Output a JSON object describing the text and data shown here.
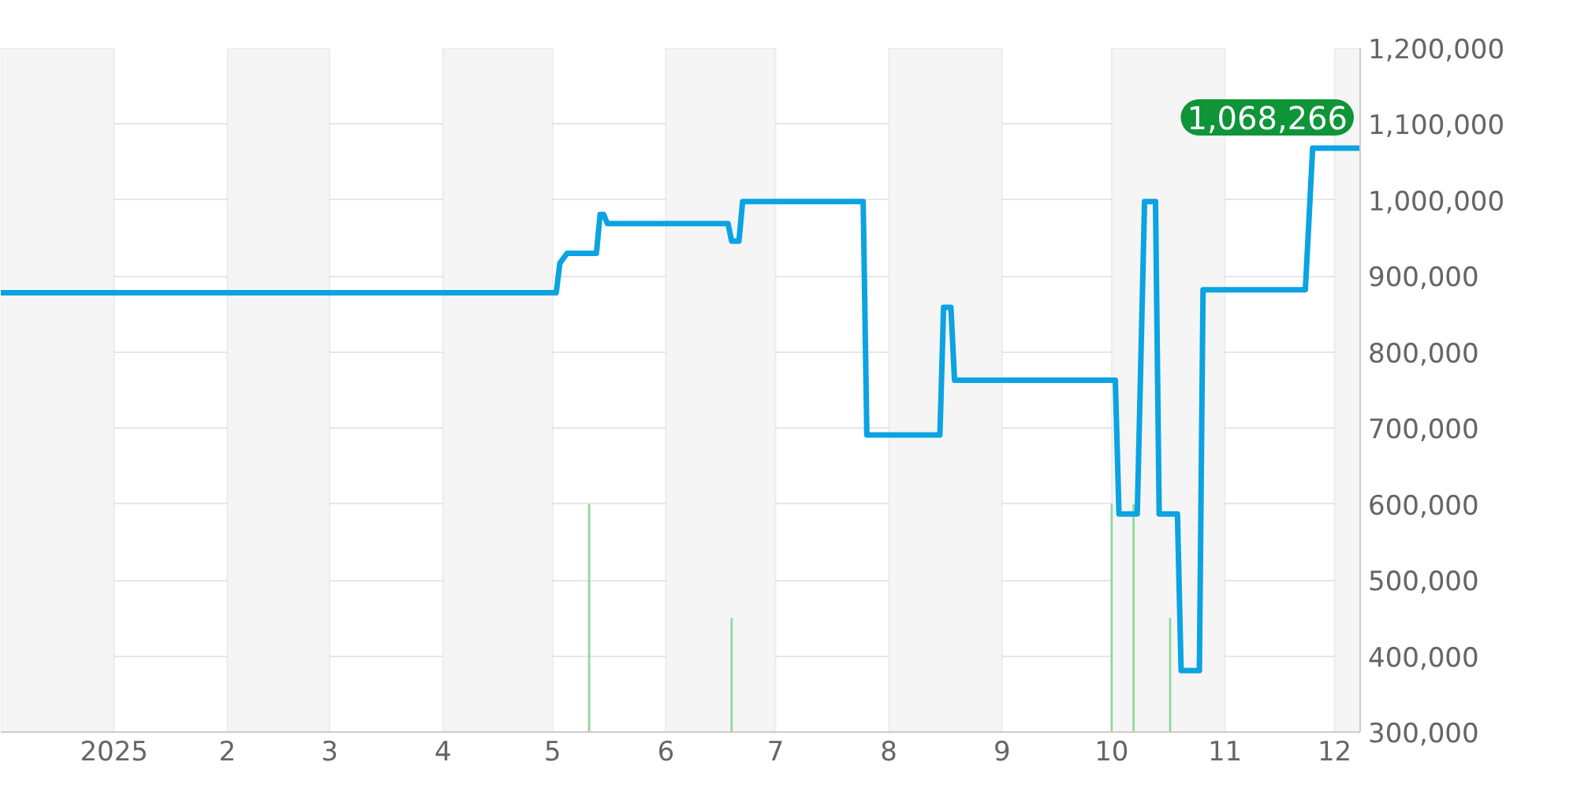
{
  "chart_data": {
    "type": "line",
    "x": [
      "2024-12-01",
      "2025-05-02",
      "2025-05-03",
      "2025-05-05",
      "2025-05-13",
      "2025-05-14",
      "2025-05-15",
      "2025-05-16",
      "2025-06-18",
      "2025-06-19",
      "2025-06-21",
      "2025-06-22",
      "2025-07-25",
      "2025-07-26",
      "2025-08-15",
      "2025-08-16",
      "2025-08-18",
      "2025-08-19",
      "2025-10-02",
      "2025-10-03",
      "2025-10-08",
      "2025-10-10",
      "2025-10-13",
      "2025-10-14",
      "2025-10-19",
      "2025-10-20",
      "2025-10-25",
      "2025-10-26",
      "2025-11-23",
      "2025-11-25",
      "2025-12-08"
    ],
    "series": [
      {
        "color": "#0ba3e2",
        "values": [
          878000,
          878000,
          917000,
          930000,
          930000,
          981000,
          981000,
          969000,
          969000,
          946000,
          946000,
          998000,
          998000,
          691000,
          691000,
          859000,
          859000,
          763000,
          763000,
          587000,
          587000,
          998000,
          998000,
          587000,
          587000,
          381000,
          381000,
          882000,
          882000,
          1068266,
          1068266
        ]
      },
      {
        "type": "bar",
        "color": "#8fd89c",
        "x": [
          "2025-05-11",
          "2025-06-19",
          "2025-10-01",
          "2025-10-07",
          "2025-10-17"
        ],
        "values": [
          600000,
          450000,
          600000,
          600000,
          450000
        ]
      }
    ],
    "xlim": [
      "2024-12-01",
      "2025-12-08"
    ],
    "xticks": [
      {
        "value": "2025-01-01",
        "label": "2025"
      },
      {
        "value": "2025-02-01",
        "label": "2"
      },
      {
        "value": "2025-03-01",
        "label": "3"
      },
      {
        "value": "2025-04-01",
        "label": "4"
      },
      {
        "value": "2025-05-01",
        "label": "5"
      },
      {
        "value": "2025-06-01",
        "label": "6"
      },
      {
        "value": "2025-07-01",
        "label": "7"
      },
      {
        "value": "2025-08-01",
        "label": "8"
      },
      {
        "value": "2025-09-01",
        "label": "9"
      },
      {
        "value": "2025-10-01",
        "label": "10"
      },
      {
        "value": "2025-11-01",
        "label": "11"
      },
      {
        "value": "2025-12-01",
        "label": "12"
      }
    ],
    "ylim": [
      300000,
      1200000
    ],
    "yticks": [
      {
        "value": 300000,
        "label": "300,000"
      },
      {
        "value": 400000,
        "label": "400,000"
      },
      {
        "value": 500000,
        "label": "500,000"
      },
      {
        "value": 600000,
        "label": "600,000"
      },
      {
        "value": 700000,
        "label": "700,000"
      },
      {
        "value": 800000,
        "label": "800,000"
      },
      {
        "value": 900000,
        "label": "900,000"
      },
      {
        "value": 1000000,
        "label": "1,000,000"
      },
      {
        "value": 1100000,
        "label": "1,100,000"
      },
      {
        "value": 1200000,
        "label": "1,200,000"
      }
    ],
    "bands": [
      {
        "axis": "x",
        "from": "2024-12-01",
        "to": "2025-01-01",
        "color": "#f5f5f5"
      },
      {
        "axis": "x",
        "from": "2025-02-01",
        "to": "2025-03-01",
        "color": "#f5f5f5"
      },
      {
        "axis": "x",
        "from": "2025-04-01",
        "to": "2025-05-01",
        "color": "#f5f5f5"
      },
      {
        "axis": "x",
        "from": "2025-06-01",
        "to": "2025-07-01",
        "color": "#f5f5f5"
      },
      {
        "axis": "x",
        "from": "2025-08-01",
        "to": "2025-09-01",
        "color": "#f5f5f5"
      },
      {
        "axis": "x",
        "from": "2025-10-01",
        "to": "2025-11-01",
        "color": "#f5f5f5"
      },
      {
        "axis": "x",
        "from": "2025-12-01",
        "to": "2025-12-08",
        "color": "#f5f5f5"
      }
    ],
    "annotations": [
      {
        "text": "1,068,266",
        "x": "2025-12-08",
        "y": 1068266
      }
    ],
    "grid": "y"
  }
}
